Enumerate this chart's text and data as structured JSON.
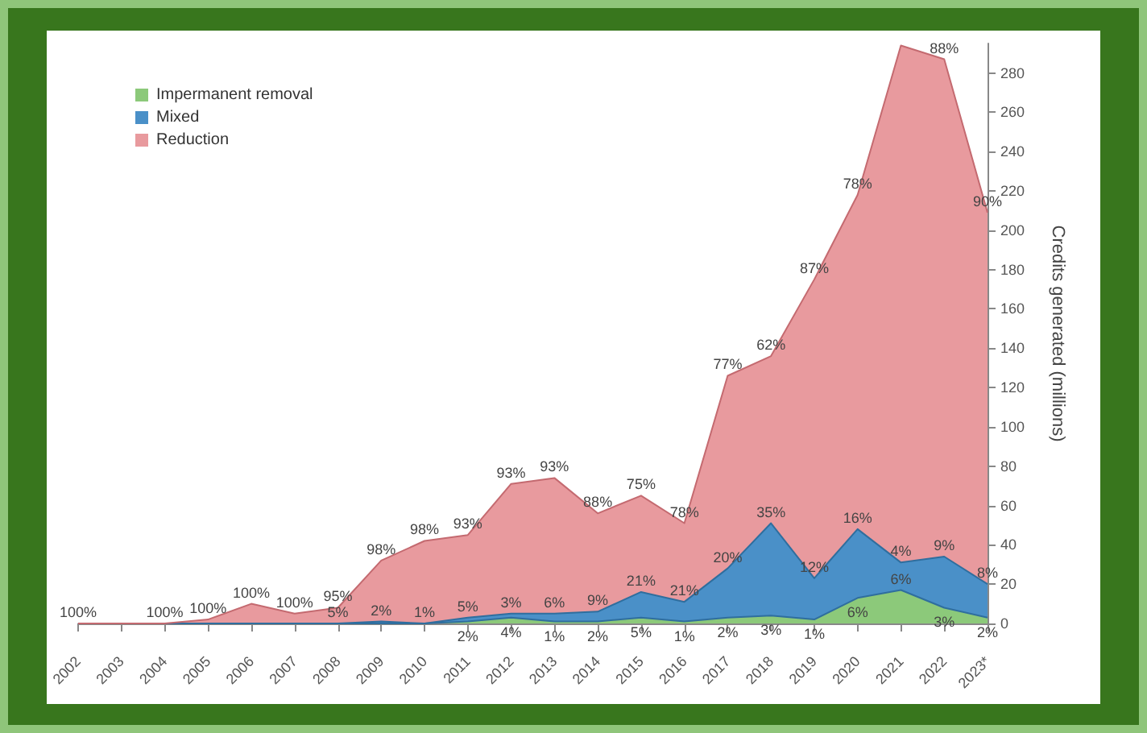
{
  "chart_data": {
    "type": "area",
    "stacked": true,
    "ylabel": "Credits generated (millions)",
    "categories": [
      "2002",
      "2003",
      "2004",
      "2005",
      "2006",
      "2007",
      "2008",
      "2009",
      "2010",
      "2011",
      "2012",
      "2013",
      "2014",
      "2015",
      "2016",
      "2017",
      "2018",
      "2019",
      "2020",
      "2021",
      "2022",
      "2023*"
    ],
    "series": [
      {
        "name": "Impermanent removal",
        "color": "#8cc97a",
        "values": [
          0,
          0,
          0,
          0,
          0,
          0,
          0,
          0,
          0,
          1,
          3,
          1,
          1,
          3,
          1,
          3,
          4,
          2,
          13,
          17,
          8,
          3
        ]
      },
      {
        "name": "Mixed",
        "color": "#4a90c8",
        "values": [
          0,
          0,
          0,
          0,
          0,
          0,
          0,
          1,
          0,
          2,
          2,
          4,
          5,
          13,
          10,
          25,
          47,
          21,
          35,
          14,
          26,
          17
        ]
      },
      {
        "name": "Reduction",
        "color": "#e89a9e",
        "values": [
          0,
          0,
          0,
          2,
          10,
          5,
          8,
          31,
          42,
          42,
          66,
          69,
          50,
          49,
          40,
          98,
          85,
          152,
          170,
          263,
          253,
          189
        ]
      }
    ],
    "annotations": [
      {
        "text": "100%",
        "x": "2002",
        "y": 0
      },
      {
        "text": "100%",
        "x": "2004",
        "y": 0
      },
      {
        "text": "100%",
        "x": "2005",
        "y": 2
      },
      {
        "text": "100%",
        "x": "2006",
        "y": 10
      },
      {
        "text": "100%",
        "x": "2007",
        "y": 5
      },
      {
        "text": "95%",
        "x": "2008",
        "y": 8
      },
      {
        "text": "98%",
        "x": "2009",
        "y": 32
      },
      {
        "text": "98%",
        "x": "2010",
        "y": 42
      },
      {
        "text": "93%",
        "x": "2011",
        "y": 45
      },
      {
        "text": "93%",
        "x": "2012",
        "y": 71
      },
      {
        "text": "93%",
        "x": "2013",
        "y": 74
      },
      {
        "text": "88%",
        "x": "2014",
        "y": 56
      },
      {
        "text": "75%",
        "x": "2015",
        "y": 65
      },
      {
        "text": "78%",
        "x": "2016",
        "y": 51
      },
      {
        "text": "77%",
        "x": "2017",
        "y": 126
      },
      {
        "text": "62%",
        "x": "2018",
        "y": 136
      },
      {
        "text": "87%",
        "x": "2019",
        "y": 175
      },
      {
        "text": "78%",
        "x": "2020",
        "y": 218
      },
      {
        "text": "88%",
        "x": "2022",
        "y": 287
      },
      {
        "text": "90%",
        "x": "2023*",
        "y": 209
      },
      {
        "text": "5%",
        "x": "2008",
        "y": 0
      },
      {
        "text": "2%",
        "x": "2009",
        "y": 1
      },
      {
        "text": "1%",
        "x": "2010",
        "y": 0
      },
      {
        "text": "5%",
        "x": "2011",
        "y": 3
      },
      {
        "text": "3%",
        "x": "2012",
        "y": 5
      },
      {
        "text": "6%",
        "x": "2013",
        "y": 5
      },
      {
        "text": "9%",
        "x": "2014",
        "y": 6
      },
      {
        "text": "21%",
        "x": "2015",
        "y": 16
      },
      {
        "text": "21%",
        "x": "2016",
        "y": 11
      },
      {
        "text": "20%",
        "x": "2017",
        "y": 28
      },
      {
        "text": "35%",
        "x": "2018",
        "y": 51
      },
      {
        "text": "12%",
        "x": "2019",
        "y": 23
      },
      {
        "text": "16%",
        "x": "2020",
        "y": 48
      },
      {
        "text": "4%",
        "x": "2021",
        "y": 31
      },
      {
        "text": "9%",
        "x": "2022",
        "y": 34
      },
      {
        "text": "8%",
        "x": "2023*",
        "y": 20
      },
      {
        "text": "2%",
        "x": "2011",
        "y": 1
      },
      {
        "text": "4%",
        "x": "2012",
        "y": 3
      },
      {
        "text": "1%",
        "x": "2013",
        "y": 1
      },
      {
        "text": "2%",
        "x": "2014",
        "y": 1
      },
      {
        "text": "5%",
        "x": "2015",
        "y": 3
      },
      {
        "text": "1%",
        "x": "2016",
        "y": 1
      },
      {
        "text": "2%",
        "x": "2017",
        "y": 3
      },
      {
        "text": "3%",
        "x": "2018",
        "y": 4
      },
      {
        "text": "1%",
        "x": "2019",
        "y": 2
      },
      {
        "text": "6%",
        "x": "2020",
        "y": 13
      },
      {
        "text": "6%",
        "x": "2021",
        "y": 17
      },
      {
        "text": "3%",
        "x": "2022",
        "y": 8
      },
      {
        "text": "2%",
        "x": "2023*",
        "y": 3
      }
    ],
    "ylim": [
      0,
      295
    ],
    "yticks": [
      0,
      20,
      40,
      60,
      80,
      100,
      120,
      140,
      160,
      180,
      200,
      220,
      240,
      260,
      280
    ],
    "grid": false,
    "legend": "top left"
  }
}
